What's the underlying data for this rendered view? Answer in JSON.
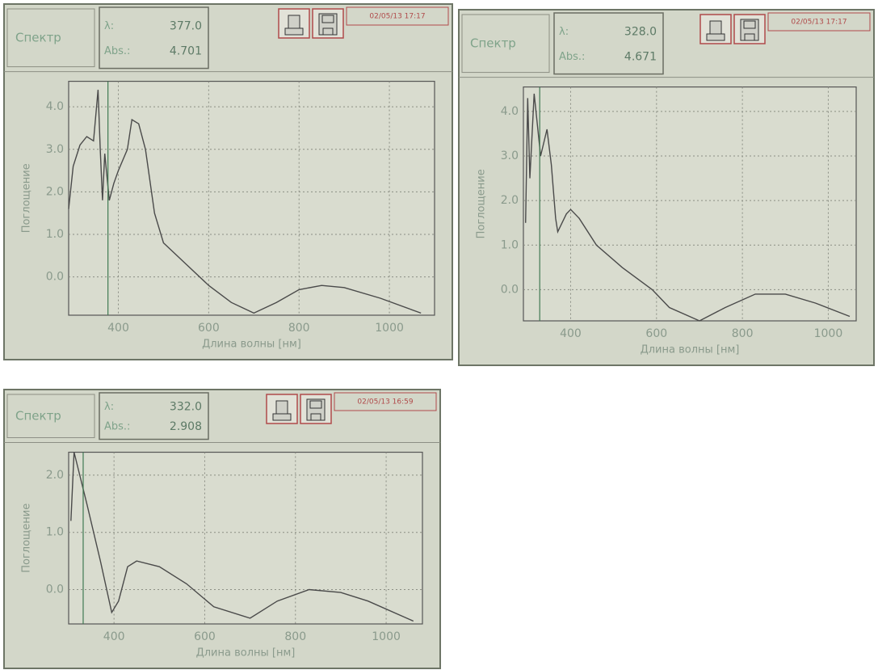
{
  "chart_data": [
    {
      "type": "line",
      "title": "Спектр",
      "cursor_label": "λ:",
      "cursor": {
        "value": 377,
        "label": "377.0"
      },
      "abs_label": "Abs.:",
      "abs": 4.701,
      "date": "02/05/13 17:17",
      "x_label": "Длина волны [нм]",
      "y_label": "Поглощение",
      "x": [
        290,
        300,
        315,
        330,
        345,
        355,
        360,
        365,
        370,
        380,
        390,
        400,
        420,
        430,
        445,
        460,
        480,
        500,
        550,
        600,
        650,
        700,
        750,
        800,
        850,
        900,
        980,
        1070
      ],
      "series": [
        {
          "color": "#4a4a4a",
          "values": [
            1.6,
            2.6,
            3.1,
            3.3,
            3.2,
            4.4,
            3.0,
            1.8,
            2.9,
            1.8,
            2.2,
            2.5,
            3.0,
            3.7,
            3.6,
            3.0,
            1.5,
            0.8,
            0.3,
            -0.2,
            -0.6,
            -0.85,
            -0.6,
            -0.3,
            -0.2,
            -0.25,
            -0.5,
            -0.85
          ]
        }
      ],
      "xlim": [
        290,
        1100
      ],
      "ylim": [
        -0.9,
        4.6
      ],
      "xticks": [
        400,
        600,
        800,
        1000
      ],
      "yticks": [
        {
          "value": 0,
          "label": "0.0"
        },
        {
          "value": 1,
          "label": "1.0"
        },
        {
          "value": 2,
          "label": "2.0"
        },
        {
          "value": 3,
          "label": "3.0"
        },
        {
          "value": 4,
          "label": "4.0"
        }
      ],
      "grid": true
    },
    {
      "type": "line",
      "title": "Спектр",
      "cursor_label": "λ:",
      "cursor": {
        "value": 328,
        "label": "328.0"
      },
      "abs_label": "Abs.:",
      "abs": 4.671,
      "date": "02/05/13 17:17",
      "x_label": "Длина волны [нм]",
      "y_label": "Поглощение",
      "x": [
        295,
        300,
        305,
        315,
        330,
        345,
        355,
        365,
        370,
        390,
        400,
        420,
        460,
        520,
        590,
        630,
        700,
        760,
        830,
        900,
        970,
        1050
      ],
      "series": [
        {
          "color": "#4a4a4a",
          "values": [
            1.5,
            4.3,
            2.5,
            4.4,
            3.0,
            3.6,
            2.8,
            1.6,
            1.3,
            1.7,
            1.8,
            1.6,
            1.0,
            0.5,
            0.0,
            -0.4,
            -0.7,
            -0.4,
            -0.1,
            -0.1,
            -0.3,
            -0.6
          ]
        }
      ],
      "xlim": [
        290,
        1065
      ],
      "ylim": [
        -0.7,
        4.55
      ],
      "xticks": [
        400,
        600,
        800,
        1000
      ],
      "yticks": [
        {
          "value": 0,
          "label": "0.0"
        },
        {
          "value": 1,
          "label": "1.0"
        },
        {
          "value": 2,
          "label": "2.0"
        },
        {
          "value": 3,
          "label": "3.0"
        },
        {
          "value": 4,
          "label": "4.0"
        }
      ],
      "grid": true
    },
    {
      "type": "line",
      "title": "Спектр",
      "cursor_label": "λ:",
      "cursor": {
        "value": 332,
        "label": "332.0"
      },
      "abs_label": "Abs.:",
      "abs": 2.908,
      "date": "02/05/13 16:59",
      "x_label": "Длина волны [нм]",
      "y_label": "Поглощение",
      "x": [
        305,
        312,
        340,
        370,
        395,
        410,
        430,
        450,
        500,
        560,
        620,
        700,
        760,
        830,
        900,
        960,
        1060
      ],
      "series": [
        {
          "color": "#4a4a4a",
          "values": [
            1.2,
            2.4,
            1.5,
            0.5,
            -0.4,
            -0.2,
            0.4,
            0.5,
            0.4,
            0.1,
            -0.3,
            -0.5,
            -0.2,
            0.0,
            -0.05,
            -0.2,
            -0.55
          ]
        }
      ],
      "xlim": [
        300,
        1080
      ],
      "ylim": [
        -0.6,
        2.4
      ],
      "xticks": [
        400,
        600,
        800,
        1000
      ],
      "yticks": [
        {
          "value": 0,
          "label": "0.0"
        },
        {
          "value": 1,
          "label": "1.0"
        },
        {
          "value": 2,
          "label": "2.0"
        }
      ],
      "grid": true
    }
  ]
}
